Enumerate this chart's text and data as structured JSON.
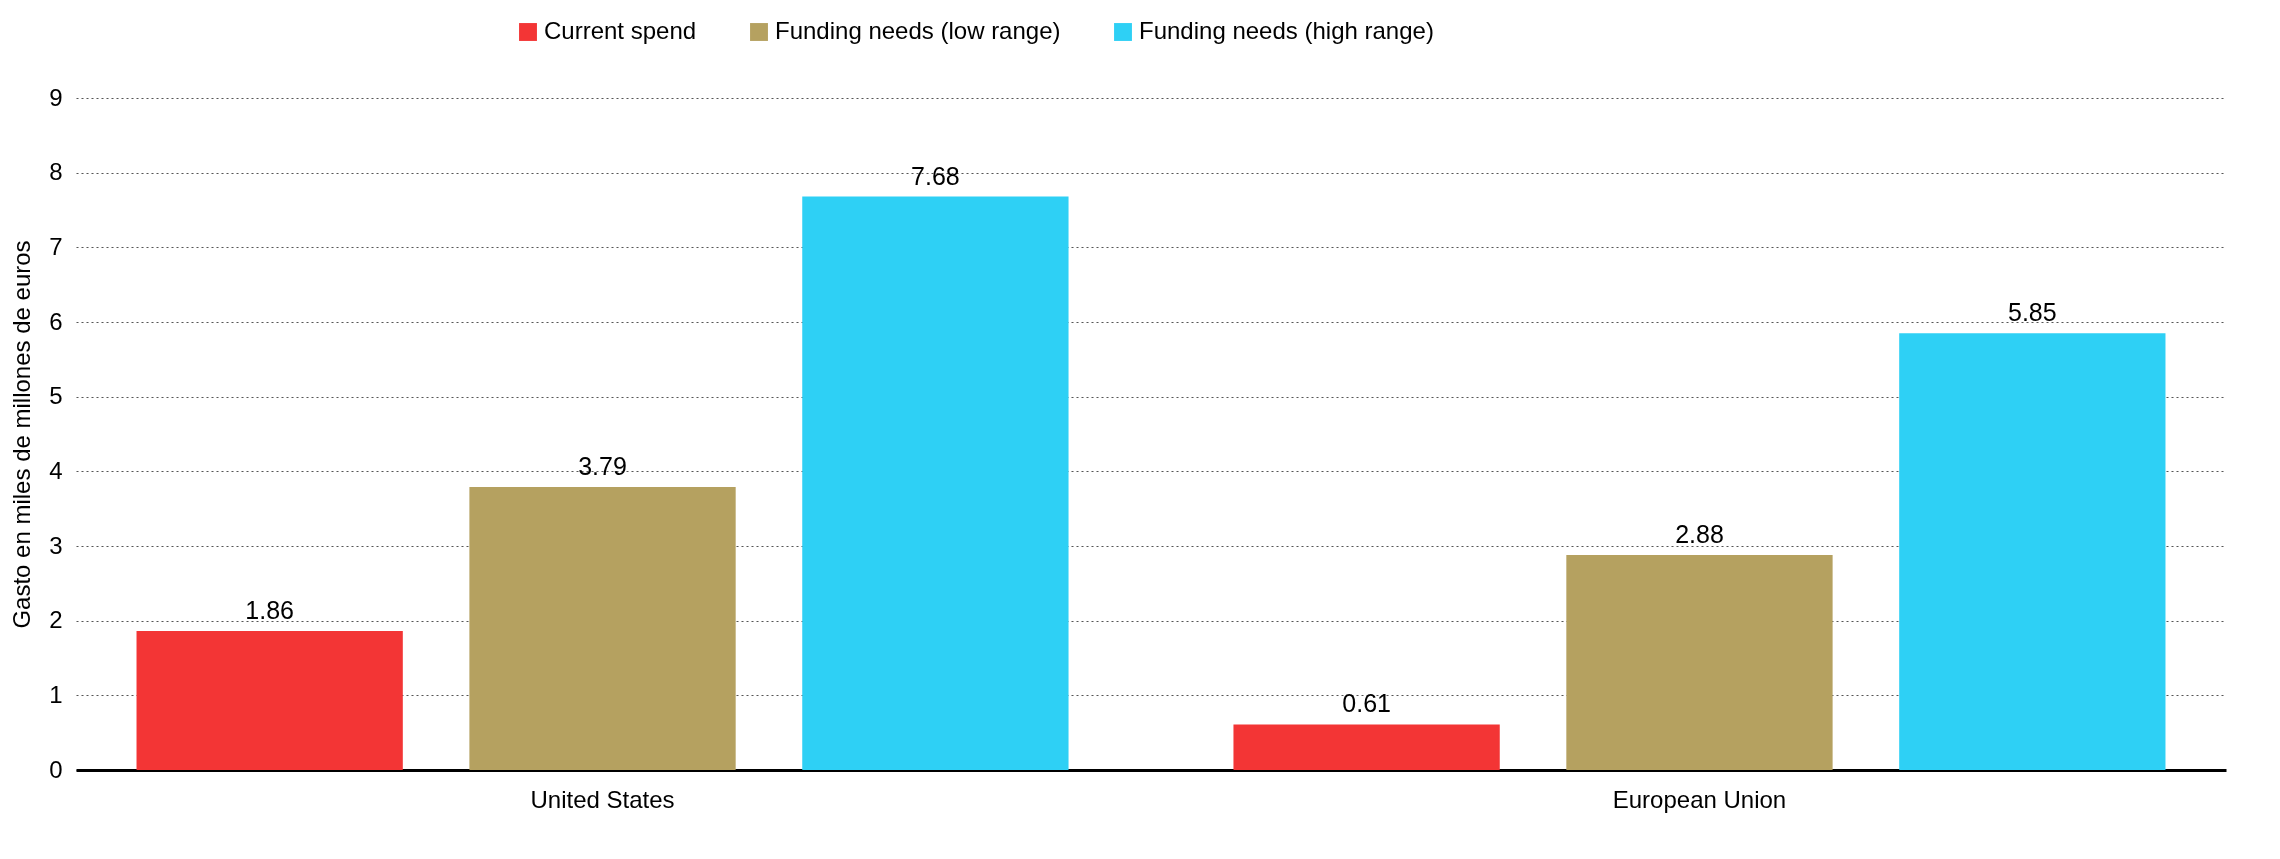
{
  "chart_data": {
    "type": "bar",
    "ylabel": "Gasto en miles de millones de euros",
    "categories": [
      "United States",
      "European Union"
    ],
    "series": [
      {
        "name": "Current spend",
        "color": "#f33535",
        "values": [
          1.86,
          0.61
        ]
      },
      {
        "name": "Funding needs (low range)",
        "color": "#b5a160",
        "values": [
          3.79,
          2.88
        ]
      },
      {
        "name": "Funding needs (high range)",
        "color": "#2ed0f5",
        "values": [
          7.68,
          5.85
        ]
      }
    ],
    "ylim": [
      0,
      9
    ],
    "yticks": [
      0,
      1,
      2,
      3,
      4,
      5,
      6,
      7,
      8,
      9
    ],
    "grid": "y",
    "legend": "top",
    "data_labels": true
  }
}
